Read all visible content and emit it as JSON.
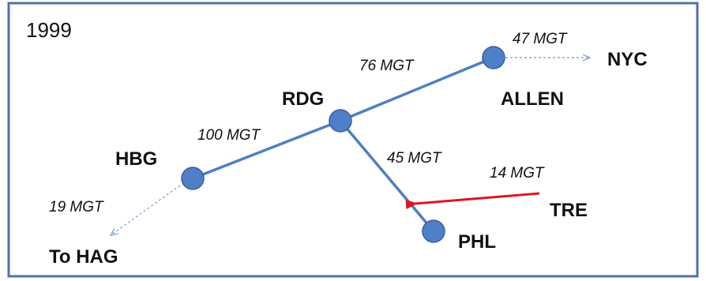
{
  "year": "1999",
  "colors": {
    "frame": "#4f73a6",
    "edge": "#4f7fc0",
    "node": "#4f7fc8",
    "dashed_arrow": "#8aa6d4",
    "red_arrow": "#e0141c"
  },
  "cities": {
    "hbg": "HBG",
    "rdg": "RDG",
    "allen": "ALLEN",
    "nyc": "NYC",
    "phl": "PHL",
    "tre": "TRE",
    "hag": "To HAG"
  },
  "flows": {
    "hbg_rdg": "100 MGT",
    "rdg_allen": "76 MGT",
    "allen_nyc": "47 MGT",
    "rdg_phl": "45 MGT",
    "tre_phl": "14 MGT",
    "hbg_hag": "19 MGT"
  }
}
